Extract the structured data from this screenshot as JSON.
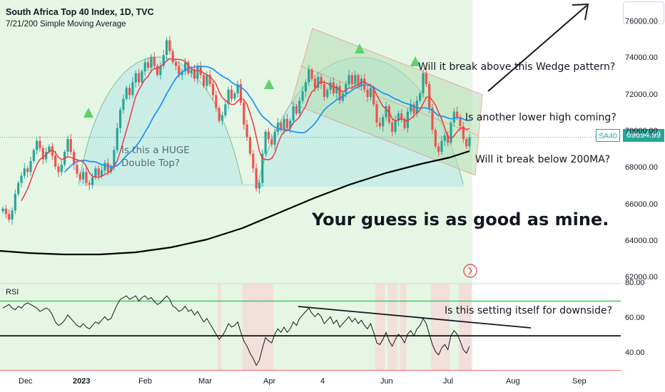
{
  "header": {
    "title": "South Africa Top 40 Index, 1D, TVC",
    "subtitle": "7/21/200 Simple Moving Average"
  },
  "last_price": {
    "symbol": "SA40",
    "value": "69694.99",
    "color": "#26a69a"
  },
  "annotations": {
    "wedge_question": "Will it break above this Wedge pattern?",
    "lower_high_question": "Is another lower high coming?",
    "ma200_question": "Will it break below 200MA?",
    "double_top_question": [
      "Is this a HUGE",
      "Double Top?"
    ],
    "guess": "Your guess is as good as mine.",
    "rsi_question": "Is this setting itself for downside?"
  },
  "colors": {
    "up": "#26a69a",
    "down": "#ef5350",
    "sma7": "#f23645",
    "sma21": "#2196f3",
    "sma200": "#000000",
    "zone_green": "#e5f6e5",
    "wedge_fill": "#b7dfb3",
    "wedge_border": "#f26464",
    "arc_fill": "#c5ece6"
  },
  "chart_data": [
    {
      "type": "candlestick",
      "title": "South Africa Top 40 Index, 1D, TVC",
      "indicators": [
        "SMA 7",
        "SMA 21",
        "SMA 200"
      ],
      "x_ticks": [
        "Dec",
        "2023",
        "Feb",
        "Mar",
        "Apr",
        "4",
        "Jun",
        "Jul",
        "Aug",
        "Sep"
      ],
      "y_ticks": [
        "62000.00",
        "64000.00",
        "66000.00",
        "68000.00",
        "70000.00",
        "72000.00",
        "74000.00",
        "76000.00"
      ],
      "ylim": [
        61700,
        77200
      ],
      "last_close": 69694.99,
      "closes": [
        65800,
        65500,
        65200,
        65700,
        66600,
        67200,
        67600,
        68000,
        67800,
        68400,
        69000,
        69500,
        69100,
        68500,
        68900,
        69200,
        68700,
        68100,
        67800,
        68200,
        68900,
        69600,
        68900,
        68200,
        67700,
        67400,
        67800,
        67200,
        67100,
        67500,
        68000,
        67600,
        67900,
        68300,
        67800,
        68100,
        69000,
        70200,
        71200,
        71800,
        72400,
        72000,
        72700,
        73200,
        72700,
        73300,
        73800,
        73500,
        74100,
        73600,
        73100,
        73600,
        74200,
        75000,
        74400,
        73800,
        73600,
        73100,
        73300,
        73800,
        73200,
        73400,
        72900,
        73600,
        73100,
        72500,
        73100,
        72600,
        72000,
        71300,
        70600,
        70900,
        71500,
        72300,
        71800,
        72100,
        72600,
        71600,
        70400,
        69700,
        68800,
        68000,
        66900,
        67200,
        68800,
        70000,
        69600,
        69300,
        70000,
        70500,
        70100,
        70700,
        70200,
        70600,
        71400,
        71000,
        71700,
        72200,
        72700,
        73400,
        72900,
        72400,
        73000,
        72600,
        71900,
        72300,
        72700,
        72100,
        72500,
        71700,
        72100,
        72600,
        73100,
        72600,
        73100,
        72500,
        72900,
        72300,
        71900,
        72400,
        71500,
        70500,
        70300,
        70800,
        71400,
        70500,
        70000,
        70600,
        71000,
        70700,
        70200,
        71100,
        71500,
        71000,
        71700,
        72100,
        73200,
        72600,
        71300,
        70100,
        69200,
        68900,
        69500,
        69800,
        69400,
        70500,
        71100,
        70800,
        70300,
        69600,
        69200,
        69700
      ],
      "rsi": {
        "ylim": [
          30,
          80
        ],
        "y_ticks": [
          "40.00",
          "60.00",
          "80.00"
        ],
        "overbought": 70,
        "oversold": 30,
        "midline": 50,
        "values": [
          66,
          67,
          68,
          66,
          65,
          67,
          66,
          68,
          69,
          68,
          67,
          66,
          64,
          65,
          66,
          65,
          62,
          58,
          56,
          57,
          59,
          62,
          60,
          58,
          56,
          55,
          57,
          55,
          54,
          56,
          58,
          57,
          59,
          61,
          59,
          60,
          64,
          68,
          71,
          72,
          73,
          71,
          72,
          73,
          70,
          72,
          73,
          71,
          72,
          70,
          68,
          69,
          71,
          73,
          71,
          67,
          66,
          64,
          65,
          67,
          64,
          65,
          62,
          64,
          61,
          58,
          60,
          57,
          54,
          51,
          48,
          50,
          53,
          57,
          55,
          56,
          58,
          52,
          47,
          44,
          40,
          37,
          33,
          36,
          43,
          49,
          47,
          46,
          51,
          54,
          52,
          55,
          52,
          54,
          58,
          56,
          60,
          62,
          64,
          66,
          63,
          61,
          63,
          61,
          57,
          59,
          61,
          57,
          59,
          55,
          57,
          59,
          61,
          58,
          60,
          57,
          59,
          56,
          54,
          57,
          52,
          46,
          45,
          48,
          52,
          47,
          44,
          48,
          51,
          49,
          46,
          51,
          53,
          50,
          54,
          56,
          60,
          57,
          51,
          45,
          41,
          39,
          43,
          45,
          42,
          50,
          53,
          51,
          47,
          42,
          40,
          44
        ]
      }
    }
  ]
}
